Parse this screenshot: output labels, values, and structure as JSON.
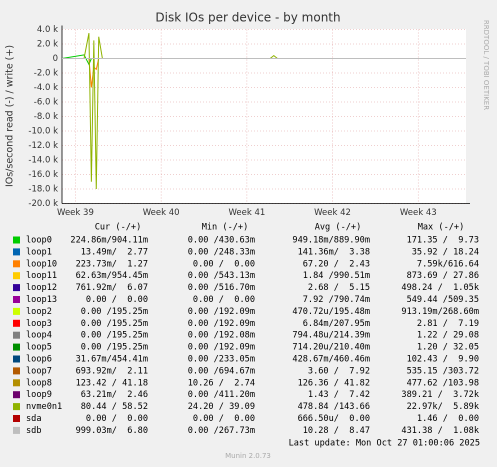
{
  "chart_data": {
    "type": "line",
    "title": "Disk IOs per device - by month",
    "y_label": "IOs/second read (-) / write (+)",
    "side_label": "RRDTOOL / TOBI OETIKER",
    "ylim": [
      -20000,
      4000
    ],
    "yticks": [
      {
        "value": 4000,
        "label": "4.0 k"
      },
      {
        "value": 2000,
        "label": "2.0 k"
      },
      0,
      {
        "value": -2000,
        "label": "-2.0 k"
      },
      {
        "value": -4000,
        "label": "-4.0 k"
      },
      {
        "value": -6000,
        "label": "-6.0 k"
      },
      {
        "value": -8000,
        "label": "-8.0 k"
      },
      {
        "value": -10000,
        "label": "-10.0 k"
      },
      {
        "value": -12000,
        "label": "-12.0 k"
      },
      {
        "value": -14000,
        "label": "-14.0 k"
      },
      {
        "value": -16000,
        "label": "-16.0 k"
      },
      {
        "value": -18000,
        "label": "-18.0 k"
      },
      {
        "value": -20000,
        "label": "-20.0 k"
      }
    ],
    "xlim": [
      0,
      33
    ],
    "xticks": [
      {
        "value": 1.1,
        "label": "Week 39"
      },
      {
        "value": 8.1,
        "label": "Week 40"
      },
      {
        "value": 15.1,
        "label": "Week 41"
      },
      {
        "value": 22.1,
        "label": "Week 42"
      },
      {
        "value": 29.1,
        "label": "Week 43"
      }
    ],
    "grid": true,
    "x": [
      0,
      1.8,
      2.2,
      2.4,
      2.6,
      2.8,
      3.0,
      3.3,
      17,
      17.3,
      17.6,
      33
    ],
    "stat_headers": [
      "Cur (-/+)",
      "Min (-/+)",
      "Avg (-/+)",
      "Max (-/+)"
    ],
    "series": [
      {
        "name": "loop0",
        "color": "#00cc00",
        "values": [
          0,
          500,
          -800,
          0,
          0,
          0,
          0,
          0,
          0,
          0,
          0,
          0
        ],
        "stats": [
          "224.86m/904.11m",
          "0.00 /430.63m",
          "949.18m/889.90m",
          "171.35 /  9.73"
        ]
      },
      {
        "name": "loop1",
        "color": "#0066b3",
        "values": [
          0,
          0,
          0,
          0,
          0,
          0,
          0,
          0,
          0,
          0,
          0,
          0
        ],
        "stats": [
          "13.49m/  2.77",
          "0.00 /248.33m",
          "141.36m/  3.38",
          "35.92 / 18.24"
        ]
      },
      {
        "name": "loop10",
        "color": "#ff8000",
        "values": [
          0,
          0,
          0,
          -4000,
          -1200,
          -1500,
          0,
          0,
          0,
          0,
          0,
          0
        ],
        "stats": [
          "223.73m/  1.27",
          "0.00 /  0.00",
          "67.20 /  2.43",
          "7.59k/616.64"
        ]
      },
      {
        "name": "loop11",
        "color": "#ffcc00",
        "values": [
          0,
          0,
          0,
          0,
          0,
          0,
          0,
          0,
          0,
          0,
          0,
          0
        ],
        "stats": [
          "62.63m/954.45m",
          "0.00 /543.13m",
          "1.84 /990.51m",
          "873.69 / 27.86"
        ]
      },
      {
        "name": "loop12",
        "color": "#330099",
        "values": [
          0,
          0,
          0,
          0,
          0,
          0,
          0,
          0,
          0,
          0,
          0,
          0
        ],
        "stats": [
          "761.92m/  6.07",
          "0.00 /516.70m",
          "2.68 /  5.15",
          "498.24 /  1.05k"
        ]
      },
      {
        "name": "loop13",
        "color": "#990099",
        "values": [
          0,
          0,
          0,
          0,
          0,
          0,
          0,
          0,
          0,
          0,
          0,
          0
        ],
        "stats": [
          "0.00 /  0.00",
          "0.00 /  0.00",
          "7.92 /790.74m",
          "549.44 /509.35"
        ]
      },
      {
        "name": "loop2",
        "color": "#ccff00",
        "values": [
          0,
          0,
          0,
          0,
          0,
          0,
          0,
          0,
          0,
          0,
          0,
          0
        ],
        "stats": [
          "0.00 /195.25m",
          "0.00 /192.09m",
          "470.72u/195.48m",
          "913.19m/268.60m"
        ]
      },
      {
        "name": "loop3",
        "color": "#ff0000",
        "values": [
          0,
          0,
          0,
          0,
          0,
          0,
          0,
          0,
          0,
          0,
          0,
          0
        ],
        "stats": [
          "0.00 /195.25m",
          "0.00 /192.09m",
          "6.84m/207.95m",
          "2.81 /  7.19"
        ]
      },
      {
        "name": "loop4",
        "color": "#808080",
        "values": [
          0,
          0,
          0,
          0,
          0,
          0,
          0,
          0,
          0,
          0,
          0,
          0
        ],
        "stats": [
          "0.00 /195.25m",
          "0.00 /192.08m",
          "794.48u/214.39m",
          "1.22 / 29.08"
        ]
      },
      {
        "name": "loop5",
        "color": "#008f00",
        "values": [
          0,
          0,
          0,
          0,
          0,
          0,
          0,
          0,
          0,
          0,
          0,
          0
        ],
        "stats": [
          "0.00 /195.25m",
          "0.00 /192.09m",
          "714.20u/210.40m",
          "1.20 / 32.05"
        ]
      },
      {
        "name": "loop6",
        "color": "#00487d",
        "values": [
          0,
          0,
          0,
          0,
          0,
          0,
          0,
          0,
          0,
          0,
          0,
          0
        ],
        "stats": [
          "31.67m/454.41m",
          "0.00 /233.05m",
          "428.67m/460.46m",
          "102.43 /  9.90"
        ]
      },
      {
        "name": "loop7",
        "color": "#b35a00",
        "values": [
          0,
          0,
          0,
          0,
          0,
          0,
          0,
          0,
          0,
          0,
          0,
          0
        ],
        "stats": [
          "693.92m/  2.11",
          "0.00 /694.67m",
          "3.60 /  7.92",
          "535.15 /303.72"
        ]
      },
      {
        "name": "loop8",
        "color": "#b38f00",
        "values": [
          0,
          0,
          0,
          0,
          0,
          0,
          0,
          0,
          0,
          0,
          0,
          0
        ],
        "stats": [
          "123.42 / 41.18",
          "10.26 /  2.74",
          "126.36 / 41.82",
          "477.62 /103.98"
        ]
      },
      {
        "name": "loop9",
        "color": "#6b006b",
        "values": [
          0,
          0,
          0,
          0,
          0,
          0,
          0,
          0,
          0,
          0,
          0,
          0
        ],
        "stats": [
          "63.21m/  2.46",
          "0.00 /411.20m",
          "1.43 /  7.42",
          "389.21 /  3.72k"
        ]
      },
      {
        "name": "nvme0n1",
        "color": "#8fb300",
        "values": [
          0,
          0,
          3500,
          -17000,
          2500,
          -18000,
          3000,
          0,
          0,
          400,
          0,
          0
        ],
        "stats": [
          "80.44 / 58.52",
          "24.20 / 39.09",
          "478.84 /143.66",
          "22.97k/  5.89k"
        ]
      },
      {
        "name": "sda",
        "color": "#b30000",
        "values": [
          0,
          0,
          0,
          0,
          0,
          0,
          0,
          0,
          0,
          0,
          0,
          0
        ],
        "stats": [
          "0.00 /  0.00",
          "0.00 /  0.00",
          "666.50u/  0.00",
          "1.46 /  0.00"
        ]
      },
      {
        "name": "sdb",
        "color": "#bebebe",
        "values": [
          0,
          0,
          0,
          0,
          0,
          0,
          0,
          0,
          0,
          0,
          0,
          0
        ],
        "stats": [
          "999.03m/  6.80",
          "0.00 /267.73m",
          "10.28 /  8.47",
          "431.38 /  1.08k"
        ]
      }
    ],
    "last_update": "Last update: Mon Oct 27 01:00:06 2025",
    "footer": "Munin 2.0.73"
  }
}
